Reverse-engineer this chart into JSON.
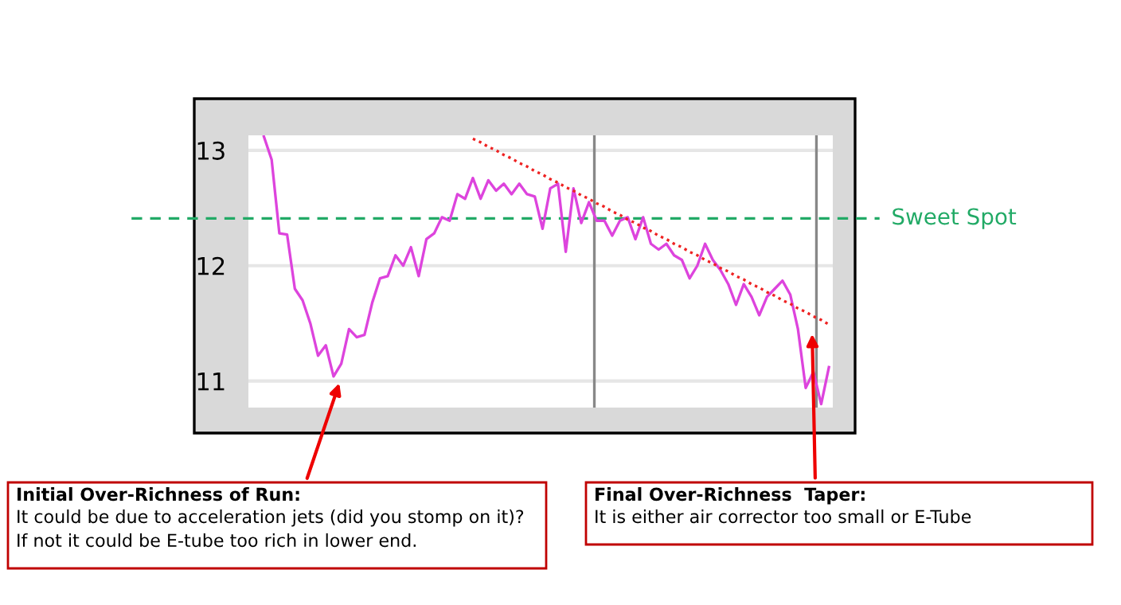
{
  "chart_data": {
    "type": "line",
    "categories": [
      null,
      null,
      null,
      null,
      null,
      null,
      null,
      null,
      null,
      null,
      null,
      null,
      null,
      null,
      null,
      null,
      null,
      null,
      null,
      null,
      null,
      null,
      null,
      null,
      null,
      null,
      null,
      null,
      null,
      null,
      null,
      null,
      null,
      null,
      null,
      null,
      null,
      null,
      null,
      null,
      null,
      null,
      null,
      null,
      null,
      null,
      null,
      null,
      null,
      null,
      null,
      null,
      null,
      null,
      null,
      null,
      null,
      null,
      null,
      null,
      null,
      null,
      null,
      null,
      null,
      null,
      null,
      null,
      null,
      null,
      null,
      null,
      null,
      null
    ],
    "series": [
      {
        "color": "#dd44dd",
        "values": [
          13.12,
          12.92,
          12.28,
          12.27,
          11.8,
          11.7,
          11.5,
          11.22,
          11.31,
          11.04,
          11.15,
          11.45,
          11.38,
          11.4,
          11.68,
          11.89,
          11.91,
          12.09,
          12.0,
          12.16,
          11.91,
          12.23,
          12.28,
          12.42,
          12.39,
          12.62,
          12.58,
          12.76,
          12.58,
          12.74,
          12.65,
          12.71,
          12.62,
          12.71,
          12.62,
          12.6,
          12.32,
          12.67,
          12.71,
          12.12,
          12.67,
          12.37,
          12.55,
          12.39,
          12.39,
          12.26,
          12.39,
          12.42,
          12.23,
          12.42,
          12.19,
          12.14,
          12.19,
          12.09,
          12.05,
          11.89,
          12.0,
          12.19,
          12.05,
          11.96,
          11.84,
          11.66,
          11.84,
          11.73,
          11.57,
          11.73,
          11.8,
          11.87,
          11.75,
          11.45,
          10.94,
          11.08,
          10.8,
          11.12
        ]
      },
      {
        "type": "line",
        "color": "#ee2222",
        "line_style": "dotted",
        "values": [
          null,
          null,
          null,
          null,
          null,
          null,
          null,
          null,
          null,
          null,
          null,
          null,
          null,
          null,
          null,
          null,
          null,
          null,
          null,
          null,
          null,
          null,
          null,
          null,
          null,
          null,
          null,
          13.1,
          13.07,
          13.03,
          13.0,
          12.96,
          12.93,
          12.89,
          12.86,
          12.82,
          12.79,
          12.75,
          12.72,
          12.68,
          12.65,
          12.61,
          12.58,
          12.54,
          12.51,
          12.47,
          12.44,
          12.4,
          12.37,
          12.33,
          12.3,
          12.26,
          12.23,
          12.19,
          12.16,
          12.12,
          12.09,
          12.05,
          12.02,
          11.98,
          11.95,
          11.91,
          11.88,
          11.84,
          11.81,
          11.77,
          11.74,
          11.7,
          11.67,
          11.63,
          11.6,
          11.56,
          11.53,
          11.49
        ]
      }
    ],
    "ylim": [
      10.77,
      13.13
    ],
    "yticks": [
      11,
      12,
      13
    ],
    "grid": "y",
    "ref_lines": [
      {
        "axis": "y",
        "value": 12.41,
        "label": "Sweet Spot",
        "color": "#22aa66",
        "line_style": "dashed"
      }
    ],
    "annotations": [
      "Initial Over-Richness of Run:",
      "It could be due to acceleration jets (did you stomp on it)?\nIf not it could be E-tube too rich in lower end.",
      "Final Over-Richness  Taper:",
      "It is either air corrector too small or E-Tube"
    ]
  }
}
